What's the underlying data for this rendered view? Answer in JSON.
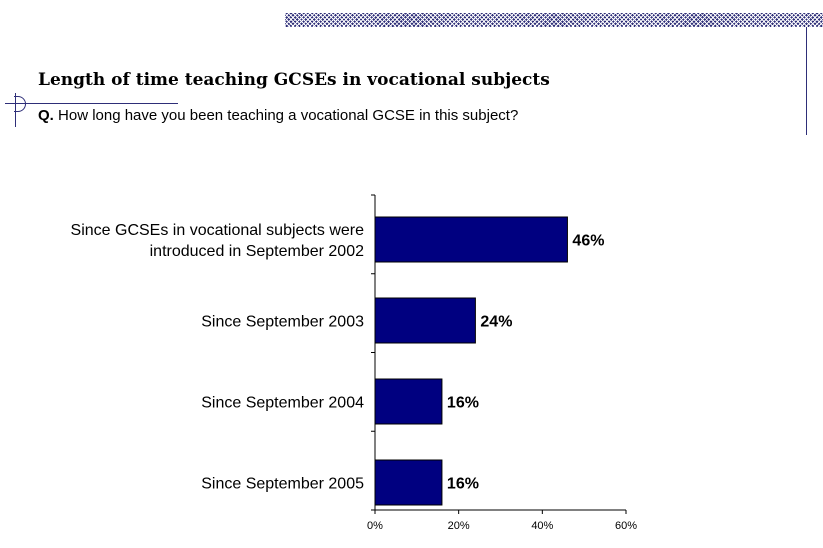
{
  "title": "Length of time teaching GCSEs in vocational subjects",
  "question": {
    "prefix": "Q.",
    "text": "How long have you been teaching a vocational GCSE in this subject?"
  },
  "colors": {
    "bar": "#000080",
    "accent": "#2e2e78"
  },
  "chart_data": {
    "type": "bar",
    "orientation": "horizontal",
    "categories": [
      [
        "Since GCSEs in vocational subjects were",
        "introduced in September 2002"
      ],
      [
        "Since September 2003"
      ],
      [
        "Since September 2004"
      ],
      [
        "Since September 2005"
      ]
    ],
    "values": [
      46,
      24,
      16,
      16
    ],
    "value_labels": [
      "46%",
      "24%",
      "16%",
      "16%"
    ],
    "xlim": [
      0,
      60
    ],
    "xticks": [
      0,
      20,
      40,
      60
    ],
    "xtick_labels": [
      "0%",
      "20%",
      "40%",
      "60%"
    ],
    "grid": false,
    "legend": "none"
  }
}
